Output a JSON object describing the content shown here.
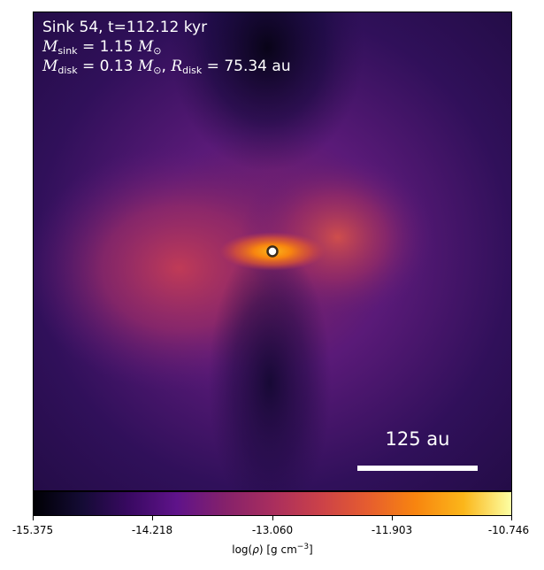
{
  "annotation": {
    "line1": "Sink 54, t=112.12 kyr",
    "msink_symbol": "M",
    "msink_sub": "sink",
    "msink_value": " = 1.15 ",
    "msun_symbol": "M",
    "msun_sub": "⊙",
    "mdisk_symbol": "M",
    "mdisk_sub": "disk",
    "mdisk_value": " = 0.13 ",
    "mdisk_sun_symbol": "M",
    "mdisk_sun_sub": "⊙",
    "separator": ", ",
    "rdisk_symbol": "R",
    "rdisk_sub": "disk",
    "rdisk_value": " = 75.34 au"
  },
  "scalebar": {
    "label": "125 au"
  },
  "colorbar": {
    "ticks": [
      "-15.375",
      "-14.218",
      "-13.060",
      "-11.903",
      "-10.746"
    ],
    "label_prefix": "log(",
    "label_rho": "ρ",
    "label_suffix": ") [g cm",
    "label_exp": "−3",
    "label_end": "]",
    "colormap": "inferno"
  },
  "colors": {
    "background_outer": "#2a0f52",
    "disk_core": "#f8850f",
    "sink_marker_fill": "#ffffff",
    "sink_marker_edge": "#3a2a1a"
  }
}
